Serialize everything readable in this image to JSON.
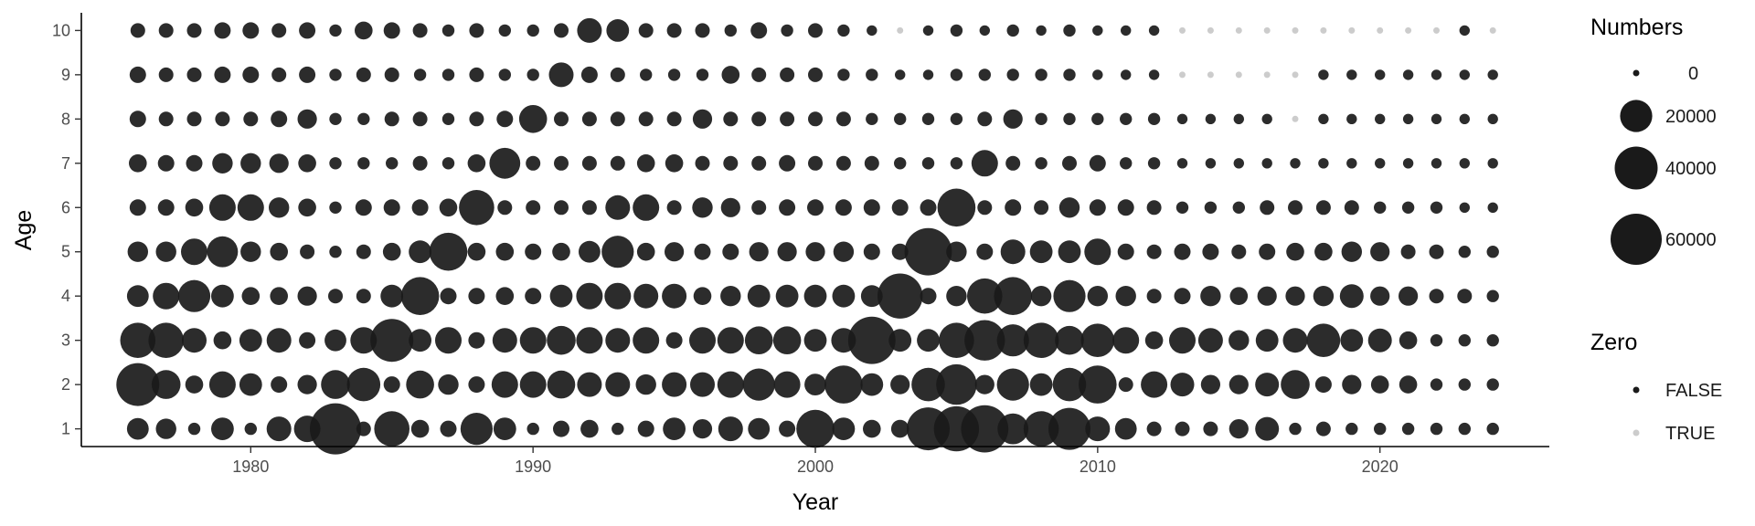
{
  "chart_data": {
    "type": "scatter",
    "subtype": "bubble",
    "title": "",
    "xlabel": "Year",
    "ylabel": "Age",
    "xlim": [
      1974,
      2026
    ],
    "ylim": [
      0.6,
      10.4
    ],
    "x_ticks": [
      1980,
      1990,
      2000,
      2010,
      2020
    ],
    "y_ticks": [
      1,
      2,
      3,
      4,
      5,
      6,
      7,
      8,
      9,
      10
    ],
    "grid": false,
    "years": [
      1976,
      1977,
      1978,
      1979,
      1980,
      1981,
      1982,
      1983,
      1984,
      1985,
      1986,
      1987,
      1988,
      1989,
      1990,
      1991,
      1992,
      1993,
      1994,
      1995,
      1996,
      1997,
      1998,
      1999,
      2000,
      2001,
      2002,
      2003,
      2004,
      2005,
      2006,
      2007,
      2008,
      2009,
      2010,
      2011,
      2012,
      2013,
      2014,
      2015,
      2016,
      2017,
      2018,
      2019,
      2020,
      2021,
      2022,
      2023,
      2024
    ],
    "ages": [
      1,
      2,
      3,
      4,
      5,
      6,
      7,
      8,
      9,
      10
    ],
    "size_legend": {
      "title": "Numbers",
      "breaks": [
        0,
        20000,
        40000,
        60000
      ],
      "labels": [
        "0",
        "20000",
        "40000",
        "60000"
      ],
      "max_value": 60000
    },
    "color_legend": {
      "title": "Zero",
      "entries": [
        {
          "label": "FALSE",
          "color": "#1a1a1a"
        },
        {
          "label": "TRUE",
          "color": "#cccccc"
        }
      ]
    },
    "numbers_by_age": {
      "1": [
        7000,
        6000,
        1000,
        8000,
        1000,
        10000,
        12000,
        60000,
        2000,
        25000,
        4000,
        3000,
        20000,
        8000,
        1000,
        3000,
        4000,
        1000,
        3000,
        8000,
        5000,
        10000,
        7000,
        3000,
        30000,
        8000,
        4000,
        4000,
        40000,
        45000,
        50000,
        18000,
        25000,
        38000,
        10000,
        7000,
        2000,
        2000,
        2000,
        5000,
        9000,
        1000,
        2000,
        1000,
        1000,
        1000,
        1000,
        1000,
        1000
      ],
      "2": [
        40000,
        15000,
        4000,
        12000,
        8000,
        3000,
        5000,
        15000,
        22000,
        3000,
        14000,
        6000,
        3000,
        12000,
        12000,
        14000,
        10000,
        10000,
        6000,
        10000,
        10000,
        12000,
        20000,
        12000,
        7000,
        30000,
        8000,
        5000,
        22000,
        35000,
        5000,
        20000,
        8000,
        22000,
        30000,
        2000,
        12000,
        9000,
        5000,
        5000,
        9000,
        15000,
        3000,
        5000,
        4000,
        4000,
        1000,
        1000,
        1000
      ],
      "3": [
        25000,
        25000,
        10000,
        4000,
        8000,
        10000,
        3000,
        7000,
        12000,
        40000,
        8000,
        12000,
        3000,
        10000,
        12000,
        15000,
        12000,
        10000,
        12000,
        3000,
        12000,
        12000,
        14000,
        14000,
        8000,
        10000,
        50000,
        8000,
        8000,
        25000,
        35000,
        20000,
        25000,
        15000,
        22000,
        12000,
        4000,
        12000,
        10000,
        6000,
        8000,
        10000,
        22000,
        8000,
        9000,
        4000,
        1000,
        1000,
        1000
      ],
      "4": [
        7000,
        12000,
        20000,
        8000,
        4000,
        4000,
        5000,
        2000,
        2000,
        8000,
        30000,
        3000,
        3000,
        4000,
        3000,
        8000,
        12000,
        12000,
        10000,
        10000,
        4000,
        6000,
        8000,
        8000,
        8000,
        8000,
        7000,
        45000,
        3000,
        6000,
        25000,
        30000,
        6000,
        20000,
        6000,
        6000,
        2000,
        3000,
        6000,
        4000,
        5000,
        5000,
        6000,
        9000,
        5000,
        5000,
        2000,
        2000,
        1000
      ],
      "5": [
        6000,
        6000,
        12000,
        18000,
        6000,
        4000,
        2000,
        1000,
        2000,
        4000,
        8000,
        30000,
        4000,
        4000,
        3000,
        4000,
        7000,
        20000,
        4000,
        5000,
        3000,
        3000,
        5000,
        5000,
        5000,
        6000,
        3000,
        3000,
        50000,
        6000,
        3000,
        10000,
        8000,
        8000,
        12000,
        3000,
        2000,
        3000,
        3000,
        2000,
        3000,
        4000,
        4000,
        6000,
        5000,
        2000,
        2000,
        1000,
        1000
      ],
      "6": [
        3000,
        3000,
        4000,
        12000,
        12000,
        6000,
        4000,
        1000,
        3000,
        3000,
        3000,
        4000,
        25000,
        2000,
        2000,
        2000,
        2000,
        10000,
        12000,
        2000,
        6000,
        5000,
        2000,
        3000,
        3000,
        3000,
        3000,
        3000,
        3000,
        30000,
        2000,
        3000,
        2000,
        6000,
        3000,
        3000,
        2000,
        1000,
        1000,
        1000,
        2000,
        2000,
        2000,
        2000,
        1000,
        1000,
        1000,
        500,
        500
      ],
      "7": [
        4000,
        3000,
        3000,
        6000,
        6000,
        5000,
        4000,
        1000,
        1000,
        1000,
        2000,
        1000,
        4000,
        18000,
        2000,
        2000,
        2000,
        2000,
        4000,
        4000,
        2000,
        2000,
        2000,
        3000,
        2000,
        2000,
        2000,
        1000,
        1000,
        1000,
        12000,
        2000,
        1000,
        2000,
        3000,
        1000,
        1000,
        500,
        500,
        500,
        500,
        500,
        500,
        500,
        500,
        500,
        500,
        500,
        500
      ],
      "8": [
        3000,
        2000,
        2000,
        2000,
        2000,
        3000,
        5000,
        1000,
        1000,
        2000,
        2000,
        1000,
        2000,
        3000,
        14000,
        2000,
        2000,
        2000,
        2000,
        2000,
        5000,
        2000,
        2000,
        2000,
        2000,
        2000,
        1000,
        1000,
        1000,
        1000,
        2000,
        5000,
        1000,
        1000,
        1000,
        1000,
        1000,
        500,
        500,
        500,
        500,
        0,
        500,
        500,
        500,
        500,
        500,
        500,
        500
      ],
      "9": [
        3000,
        2000,
        2000,
        3000,
        3000,
        2000,
        3000,
        1000,
        2000,
        2000,
        1000,
        1000,
        2000,
        1000,
        1000,
        10000,
        3000,
        2000,
        1000,
        1000,
        1000,
        4000,
        2000,
        2000,
        2000,
        1000,
        1000,
        500,
        500,
        1000,
        1000,
        1000,
        1000,
        1000,
        500,
        500,
        500,
        0,
        0,
        0,
        0,
        0,
        500,
        500,
        500,
        500,
        500,
        500,
        500
      ],
      "10": [
        2000,
        2000,
        2000,
        3000,
        3000,
        2000,
        3000,
        1000,
        4000,
        3000,
        2000,
        1000,
        2000,
        1000,
        1000,
        2000,
        10000,
        8000,
        2000,
        2000,
        2000,
        1000,
        3000,
        1000,
        2000,
        1000,
        500,
        0,
        500,
        1000,
        500,
        1000,
        500,
        1000,
        500,
        500,
        500,
        0,
        0,
        0,
        0,
        0,
        0,
        0,
        0,
        0,
        0,
        500,
        0
      ]
    }
  }
}
